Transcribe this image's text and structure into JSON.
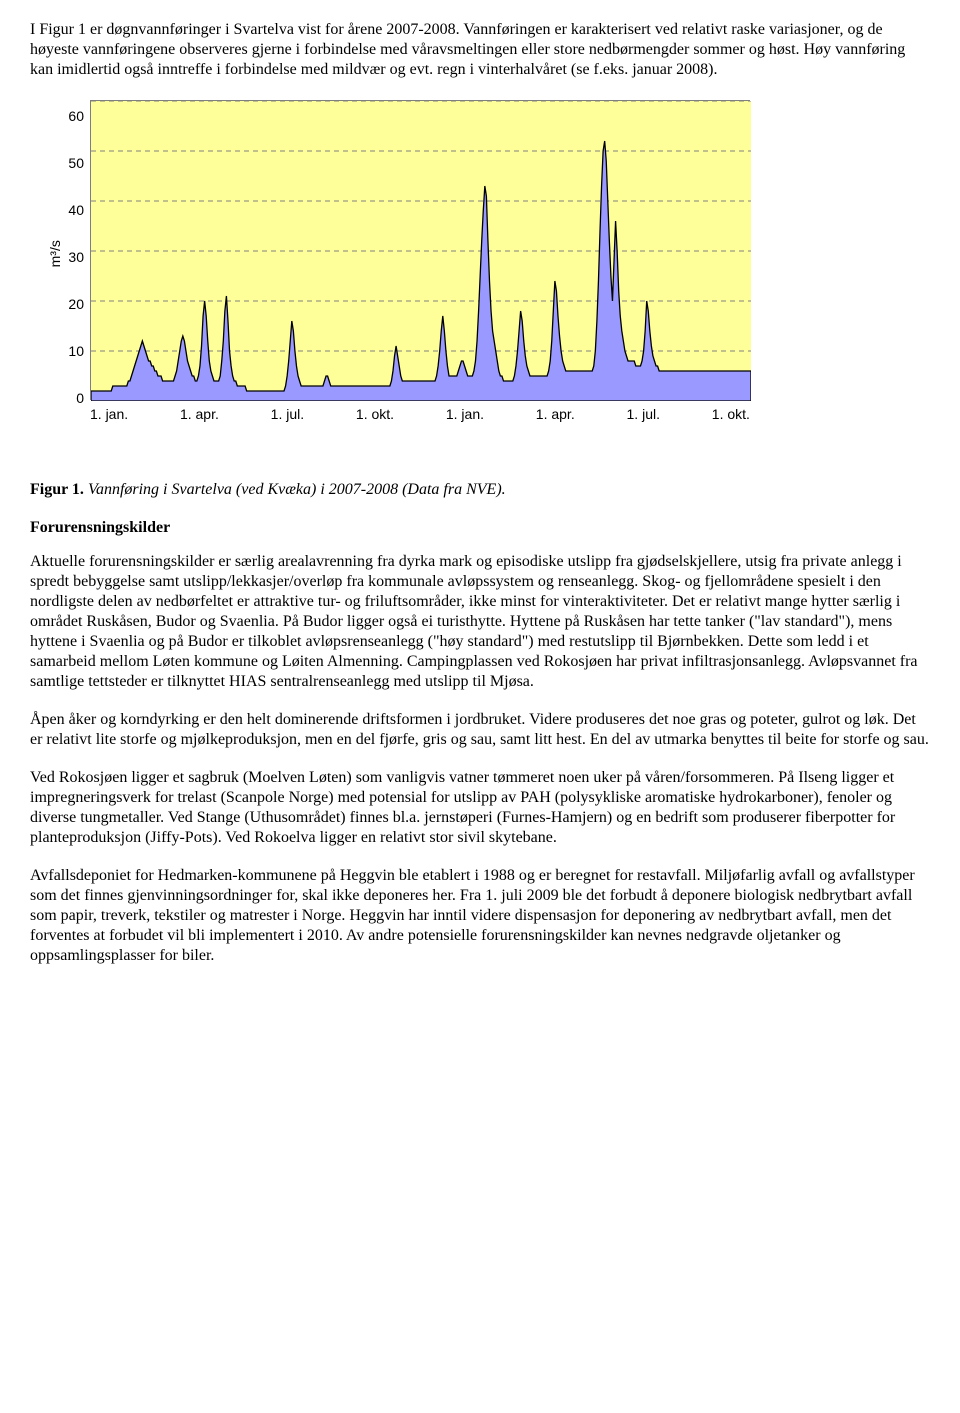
{
  "intro_para": "I Figur 1 er døgnvannføringer i Svartelva vist for årene 2007-2008. Vannføringen er karakterisert ved relativt raske variasjoner, og de høyeste vannføringene observeres gjerne i forbindelse med våravsmeltingen eller store nedbørmengder sommer og høst. Høy vannføring kan imidlertid også inntreffe i forbindelse med mildvær og evt. regn i vinterhalvåret (se f.eks. januar 2008).",
  "chart": {
    "type": "area",
    "y_label": "m³/s",
    "ylim": [
      0,
      60
    ],
    "ytick_step": 10,
    "y_ticks": [
      "60",
      "50",
      "40",
      "30",
      "20",
      "10",
      "0"
    ],
    "x_ticks": [
      "1. jan.",
      "1. apr.",
      "1. jul.",
      "1. okt.",
      "1. jan.",
      "1. apr.",
      "1. jul.",
      "1. okt."
    ],
    "background_color": "#ffff99",
    "grid_color": "#808080",
    "series_fill": "#9999ff",
    "series_stroke": "#000000",
    "stroke_width": 1.3,
    "values": [
      2,
      2,
      2,
      2,
      2,
      2,
      2,
      2,
      2,
      2,
      2,
      2,
      2,
      2,
      3,
      3,
      3,
      3,
      3,
      3,
      3,
      3,
      3,
      3,
      4,
      4,
      5,
      6,
      7,
      8,
      9,
      10,
      11,
      12,
      11,
      10,
      9,
      8,
      8,
      7,
      7,
      6,
      6,
      5,
      5,
      5,
      4,
      4,
      4,
      4,
      4,
      4,
      4,
      4,
      5,
      6,
      8,
      10,
      12,
      13,
      12,
      10,
      8,
      7,
      6,
      5,
      5,
      4,
      4,
      5,
      7,
      11,
      17,
      20,
      17,
      12,
      8,
      6,
      5,
      4,
      4,
      4,
      4,
      5,
      8,
      12,
      18,
      21,
      16,
      10,
      7,
      5,
      4,
      4,
      3,
      3,
      3,
      3,
      3,
      3,
      2,
      2,
      2,
      2,
      2,
      2,
      2,
      2,
      2,
      2,
      2,
      2,
      2,
      2,
      2,
      2,
      2,
      2,
      2,
      2,
      2,
      2,
      2,
      2,
      2,
      3,
      5,
      8,
      12,
      16,
      14,
      10,
      7,
      5,
      4,
      3,
      3,
      3,
      3,
      3,
      3,
      3,
      3,
      3,
      3,
      3,
      3,
      3,
      3,
      3,
      4,
      5,
      5,
      4,
      3,
      3,
      3,
      3,
      3,
      3,
      3,
      3,
      3,
      3,
      3,
      3,
      3,
      3,
      3,
      3,
      3,
      3,
      3,
      3,
      3,
      3,
      3,
      3,
      3,
      3,
      3,
      3,
      3,
      3,
      3,
      3,
      3,
      3,
      3,
      3,
      3,
      3,
      3,
      4,
      6,
      9,
      11,
      9,
      7,
      5,
      4,
      4,
      4,
      4,
      4,
      4,
      4,
      4,
      4,
      4,
      4,
      4,
      4,
      4,
      4,
      4,
      4,
      4,
      4,
      4,
      4,
      4,
      5,
      7,
      10,
      14,
      17,
      14,
      10,
      7,
      5,
      5,
      5,
      5,
      5,
      5,
      6,
      7,
      8,
      8,
      7,
      6,
      5,
      5,
      5,
      5,
      6,
      8,
      12,
      18,
      25,
      32,
      38,
      43,
      41,
      32,
      24,
      18,
      14,
      12,
      10,
      8,
      6,
      5,
      5,
      4,
      4,
      4,
      4,
      4,
      4,
      4,
      5,
      7,
      10,
      14,
      18,
      16,
      12,
      9,
      7,
      6,
      5,
      5,
      5,
      5,
      5,
      5,
      5,
      5,
      5,
      5,
      5,
      5,
      6,
      8,
      12,
      18,
      24,
      22,
      17,
      13,
      10,
      8,
      7,
      6,
      6,
      6,
      6,
      6,
      6,
      6,
      6,
      6,
      6,
      6,
      6,
      6,
      6,
      6,
      6,
      6,
      6,
      7,
      10,
      16,
      24,
      34,
      43,
      50,
      52,
      48,
      40,
      32,
      25,
      20,
      28,
      36,
      30,
      22,
      17,
      14,
      12,
      10,
      9,
      8,
      8,
      8,
      8,
      8,
      7,
      7,
      7,
      7,
      8,
      10,
      14,
      20,
      18,
      14,
      11,
      9,
      8,
      7,
      7,
      6,
      6,
      6,
      6,
      6,
      6,
      6,
      6,
      6,
      6,
      6,
      6,
      6,
      6,
      6,
      6,
      6,
      6,
      6,
      6,
      6,
      6,
      6,
      6,
      6,
      6,
      6,
      6,
      6,
      6,
      6,
      6,
      6,
      6,
      6,
      6,
      6,
      6,
      6,
      6,
      6,
      6,
      6,
      6,
      6,
      6,
      6,
      6,
      6,
      6,
      6,
      6,
      6,
      6,
      6,
      6,
      6,
      6,
      6,
      6
    ]
  },
  "figure_caption_num": "Figur 1.",
  "figure_caption_text": " Vannføring i Svartelva (ved Kvæka) i 2007-2008 (Data fra NVE).",
  "section_heading": "Forurensningskilder",
  "para2": "Aktuelle forurensningskilder er særlig arealavrenning fra dyrka mark og episodiske utslipp fra gjødselskjellere, utsig fra private anlegg i spredt bebyggelse samt utslipp/lekkasjer/overløp fra kommunale avløpssystem og renseanlegg. Skog- og fjellområdene spesielt i den nordligste delen av nedbørfeltet er attraktive tur- og friluftsområder, ikke minst for vinteraktiviteter. Det er relativt mange hytter særlig i området Ruskåsen, Budor og Svaenlia. På Budor ligger også ei turisthytte. Hyttene på Ruskåsen har tette tanker (\"lav standard\"), mens hyttene i Svaenlia og på Budor er tilkoblet avløpsrenseanlegg (\"høy standard\") med restutslipp til Bjørnbekken. Dette som ledd i et samarbeid mellom Løten kommune og Løiten Almenning. Campingplassen ved Rokosjøen har privat infiltrasjonsanlegg. Avløpsvannet fra samtlige tettsteder er tilknyttet HIAS sentralrenseanlegg med utslipp til Mjøsa.",
  "para3": "Åpen åker og korndyrking er den helt dominerende driftsformen i jordbruket. Videre produseres det noe gras og poteter, gulrot og løk. Det er relativt lite storfe og mjølkeproduksjon, men en del fjørfe, gris og sau, samt litt hest. En del av utmarka benyttes til beite for storfe og sau.",
  "para4": "Ved Rokosjøen ligger et sagbruk (Moelven Løten) som vanligvis vatner tømmeret noen uker på våren/forsommeren. På Ilseng ligger et impregneringsverk for trelast (Scanpole Norge) med potensial for utslipp av PAH (polysykliske aromatiske hydrokarboner), fenoler og diverse tungmetaller. Ved Stange (Uthusområdet) finnes bl.a. jernstøperi (Furnes-Hamjern) og en bedrift som produserer fiberpotter for planteproduksjon (Jiffy-Pots). Ved Rokoelva ligger en relativt stor sivil skytebane.",
  "para5": "Avfallsdeponiet for Hedmarken-kommunene på Heggvin ble etablert i 1988 og er beregnet for restavfall. Miljøfarlig avfall og avfallstyper som det finnes gjenvinningsordninger for, skal ikke deponeres her. Fra 1. juli 2009 ble det forbudt å deponere biologisk nedbrytbart avfall som papir, treverk, tekstiler og matrester i Norge. Heggvin har inntil videre dispensasjon for deponering av nedbrytbart avfall, men det forventes at forbudet vil bli implementert i 2010. Av andre potensielle forurensningskilder kan nevnes nedgravde oljetanker og oppsamlingsplasser for biler."
}
